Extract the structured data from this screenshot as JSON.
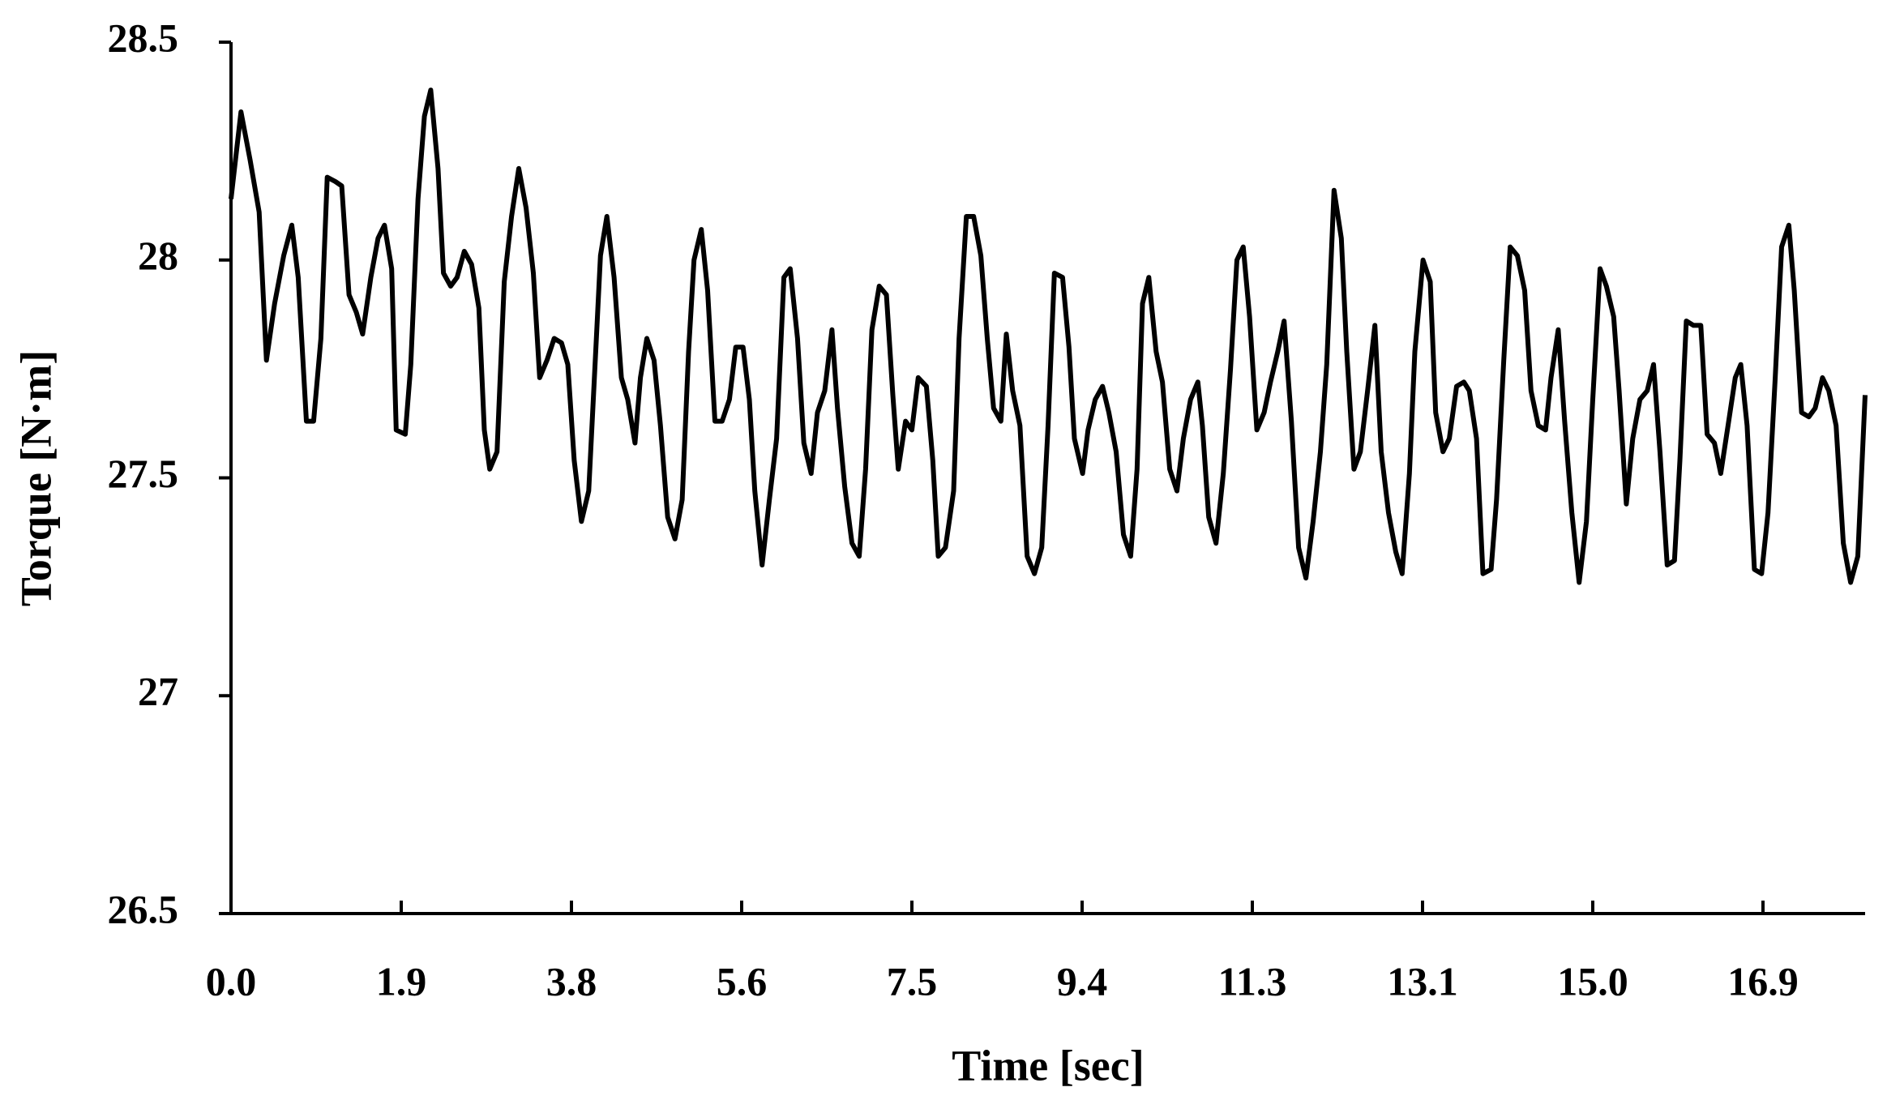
{
  "chart_data": {
    "type": "line",
    "x_label": "Time [sec]",
    "y_label": "Torque [N·m]",
    "color": "#000000",
    "xlim": [
      0,
      18
    ],
    "ylim": [
      26.5,
      28.5
    ],
    "xticks": [
      {
        "value": 0,
        "label": "0.0"
      },
      {
        "value": 1.875,
        "label": "1.9"
      },
      {
        "value": 3.75,
        "label": "3.8"
      },
      {
        "value": 5.625,
        "label": "5.6"
      },
      7.5,
      {
        "value": 9.375,
        "label": "9.4"
      },
      {
        "value": 11.25,
        "label": "11.3"
      },
      {
        "value": 13.125,
        "label": "13.1"
      },
      {
        "value": 15,
        "label": "15.0"
      },
      {
        "value": 16.875,
        "label": "16.9"
      }
    ],
    "yticks": [
      26.5,
      27,
      27.5,
      28,
      28.5
    ],
    "x": [
      0,
      0.11,
      0.21,
      0.31,
      0.39,
      0.48,
      0.58,
      0.67,
      0.74,
      0.83,
      0.91,
      0.99,
      1.06,
      1.15,
      1.22,
      1.3,
      1.38,
      1.45,
      1.54,
      1.62,
      1.69,
      1.77,
      1.82,
      1.92,
      1.98,
      2.06,
      2.13,
      2.2,
      2.28,
      2.34,
      2.42,
      2.49,
      2.57,
      2.65,
      2.73,
      2.79,
      2.85,
      2.93,
      3.01,
      3.09,
      3.17,
      3.25,
      3.33,
      3.4,
      3.48,
      3.56,
      3.64,
      3.71,
      3.78,
      3.86,
      3.94,
      4.02,
      4.07,
      4.14,
      4.22,
      4.3,
      4.37,
      4.45,
      4.51,
      4.58,
      4.66,
      4.73,
      4.81,
      4.89,
      4.97,
      5.04,
      5.1,
      5.18,
      5.25,
      5.33,
      5.41,
      5.49,
      5.56,
      5.64,
      5.71,
      5.77,
      5.85,
      5.93,
      6.01,
      6.09,
      6.16,
      6.24,
      6.31,
      6.39,
      6.46,
      6.54,
      6.62,
      6.68,
      6.76,
      6.84,
      6.92,
      6.99,
      7.06,
      7.14,
      7.22,
      7.29,
      7.35,
      7.43,
      7.5,
      7.57,
      7.66,
      7.73,
      7.79,
      7.87,
      7.96,
      8.02,
      8.1,
      8.18,
      8.26,
      8.33,
      8.4,
      8.48,
      8.54,
      8.61,
      8.69,
      8.77,
      8.85,
      8.93,
      9.0,
      9.07,
      9.16,
      9.23,
      9.29,
      9.38,
      9.44,
      9.52,
      9.6,
      9.67,
      9.75,
      9.83,
      9.91,
      9.98,
      10.04,
      10.11,
      10.19,
      10.26,
      10.34,
      10.42,
      10.49,
      10.57,
      10.65,
      10.7,
      10.77,
      10.85,
      10.93,
      11.01,
      11.08,
      11.15,
      11.22,
      11.3,
      11.38,
      11.45,
      11.53,
      11.6,
      11.68,
      11.76,
      11.84,
      11.92,
      12.0,
      12.07,
      12.15,
      12.23,
      12.29,
      12.37,
      12.44,
      12.52,
      12.6,
      12.67,
      12.75,
      12.83,
      12.9,
      12.98,
      13.04,
      13.13,
      13.21,
      13.27,
      13.35,
      13.42,
      13.5,
      13.58,
      13.64,
      13.72,
      13.79,
      13.88,
      13.94,
      14.02,
      14.09,
      14.17,
      14.25,
      14.32,
      14.4,
      14.48,
      14.54,
      14.62,
      14.69,
      14.77,
      14.85,
      14.93,
      15.0,
      15.08,
      15.15,
      15.23,
      15.29,
      15.37,
      15.44,
      15.52,
      15.6,
      15.67,
      15.74,
      15.82,
      15.9,
      15.96,
      16.03,
      16.11,
      16.19,
      16.26,
      16.34,
      16.41,
      16.49,
      16.57,
      16.63,
      16.7,
      16.78,
      16.86,
      16.93,
      17.01,
      17.08,
      17.16,
      17.22,
      17.3,
      17.38,
      17.45,
      17.53,
      17.6,
      17.68,
      17.76,
      17.84,
      17.92,
      18.0
    ],
    "values": [
      28.14,
      28.34,
      28.23,
      28.11,
      27.77,
      27.9,
      28.01,
      28.08,
      27.96,
      27.63,
      27.63,
      27.82,
      28.19,
      28.18,
      28.17,
      27.92,
      27.88,
      27.83,
      27.96,
      28.05,
      28.08,
      27.98,
      27.61,
      27.6,
      27.76,
      28.14,
      28.33,
      28.39,
      28.21,
      27.97,
      27.94,
      27.96,
      28.02,
      27.99,
      27.89,
      27.61,
      27.52,
      27.56,
      27.95,
      28.1,
      28.21,
      28.12,
      27.97,
      27.73,
      27.77,
      27.82,
      27.81,
      27.76,
      27.54,
      27.4,
      27.47,
      27.8,
      28.01,
      28.1,
      27.96,
      27.73,
      27.68,
      27.58,
      27.73,
      27.82,
      27.77,
      27.62,
      27.41,
      27.36,
      27.45,
      27.79,
      28.0,
      28.07,
      27.93,
      27.63,
      27.63,
      27.68,
      27.8,
      27.8,
      27.68,
      27.47,
      27.3,
      27.45,
      27.59,
      27.96,
      27.98,
      27.82,
      27.58,
      27.51,
      27.65,
      27.7,
      27.84,
      27.66,
      27.48,
      27.35,
      27.32,
      27.52,
      27.84,
      27.94,
      27.92,
      27.69,
      27.52,
      27.63,
      27.61,
      27.73,
      27.71,
      27.54,
      27.32,
      27.34,
      27.47,
      27.82,
      28.1,
      28.1,
      28.01,
      27.82,
      27.66,
      27.63,
      27.83,
      27.7,
      27.62,
      27.32,
      27.28,
      27.34,
      27.62,
      27.97,
      27.96,
      27.8,
      27.59,
      27.51,
      27.61,
      27.68,
      27.71,
      27.65,
      27.56,
      27.37,
      27.32,
      27.52,
      27.9,
      27.96,
      27.79,
      27.72,
      27.52,
      27.47,
      27.59,
      27.68,
      27.72,
      27.62,
      27.41,
      27.35,
      27.51,
      27.75,
      28.0,
      28.03,
      27.87,
      27.61,
      27.65,
      27.72,
      27.79,
      27.86,
      27.63,
      27.34,
      27.27,
      27.4,
      27.56,
      27.76,
      28.16,
      28.05,
      27.79,
      27.52,
      27.56,
      27.7,
      27.85,
      27.56,
      27.42,
      27.33,
      27.28,
      27.51,
      27.79,
      28.0,
      27.95,
      27.65,
      27.56,
      27.59,
      27.71,
      27.72,
      27.7,
      27.59,
      27.28,
      27.29,
      27.45,
      27.77,
      28.03,
      28.01,
      27.93,
      27.7,
      27.62,
      27.61,
      27.73,
      27.84,
      27.63,
      27.42,
      27.26,
      27.4,
      27.68,
      27.98,
      27.94,
      27.87,
      27.7,
      27.44,
      27.59,
      27.68,
      27.7,
      27.76,
      27.56,
      27.3,
      27.31,
      27.54,
      27.86,
      27.85,
      27.85,
      27.6,
      27.58,
      27.51,
      27.62,
      27.73,
      27.76,
      27.62,
      27.29,
      27.28,
      27.42,
      27.73,
      28.03,
      28.08,
      27.93,
      27.65,
      27.64,
      27.66,
      27.73,
      27.7,
      27.62,
      27.35,
      27.26,
      27.32,
      27.69
    ]
  }
}
